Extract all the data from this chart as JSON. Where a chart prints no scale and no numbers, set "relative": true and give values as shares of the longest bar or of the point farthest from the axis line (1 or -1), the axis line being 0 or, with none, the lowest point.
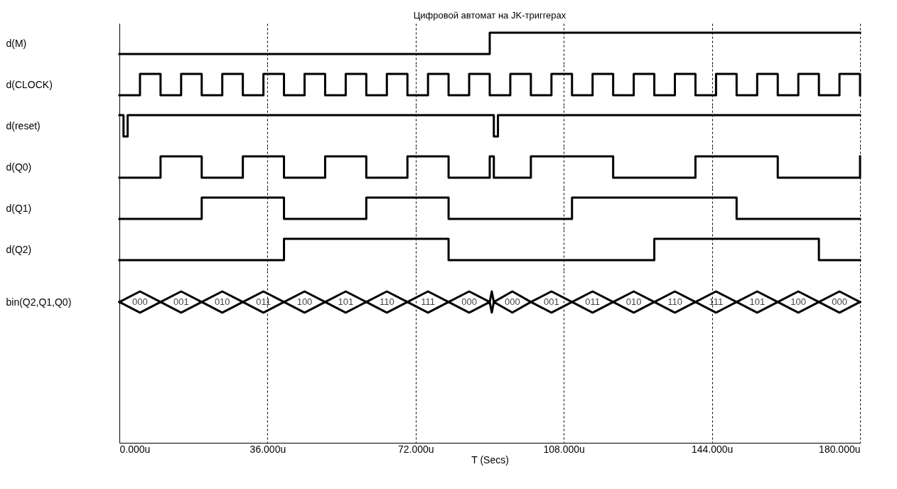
{
  "chart_data": [
    {
      "type": "step",
      "title": "Цифровой автомат на JK-триггерах",
      "ylabel": "d(M)",
      "relative": true,
      "xlim": [
        0,
        180
      ],
      "xticks": [
        0,
        36,
        72,
        108,
        144,
        180
      ],
      "grid": "x",
      "tick_labels": false,
      "x": [
        0,
        90,
        180
      ],
      "series": [
        {
          "color": "#000000",
          "values": [
            0,
            1,
            1
          ]
        }
      ]
    },
    {
      "type": "step",
      "ylabel": "d(CLOCK)",
      "relative": true,
      "xlim": [
        0,
        180
      ],
      "xticks": [
        0,
        36,
        72,
        108,
        144,
        180
      ],
      "grid": "x",
      "tick_labels": false,
      "x": [
        0,
        5,
        10,
        15,
        20,
        25,
        30,
        35,
        40,
        45,
        50,
        55,
        60,
        65,
        70,
        75,
        80,
        85,
        90,
        95,
        100,
        105,
        110,
        115,
        120,
        125,
        130,
        135,
        140,
        145,
        150,
        155,
        160,
        165,
        170,
        175,
        180
      ],
      "series": [
        {
          "color": "#000000",
          "values": [
            0,
            1,
            0,
            1,
            0,
            1,
            0,
            1,
            0,
            1,
            0,
            1,
            0,
            1,
            0,
            1,
            0,
            1,
            0,
            1,
            0,
            1,
            0,
            1,
            0,
            1,
            0,
            1,
            0,
            1,
            0,
            1,
            0,
            1,
            0,
            1,
            0
          ]
        }
      ]
    },
    {
      "type": "step",
      "ylabel": "d(reset)",
      "relative": true,
      "xlim": [
        0,
        180
      ],
      "xticks": [
        0,
        36,
        72,
        108,
        144,
        180
      ],
      "grid": "x",
      "tick_labels": false,
      "x": [
        0,
        1,
        2,
        91,
        92,
        180
      ],
      "series": [
        {
          "color": "#000000",
          "values": [
            1,
            0,
            1,
            0,
            1,
            1
          ]
        }
      ]
    },
    {
      "type": "step",
      "ylabel": "d(Q0)",
      "relative": true,
      "xlim": [
        0,
        180
      ],
      "xticks": [
        0,
        36,
        72,
        108,
        144,
        180
      ],
      "grid": "x",
      "tick_labels": false,
      "x": [
        0,
        10,
        20,
        30,
        40,
        50,
        60,
        70,
        80,
        90,
        91,
        100,
        120,
        140,
        160,
        180
      ],
      "series": [
        {
          "color": "#000000",
          "values": [
            0,
            1,
            0,
            1,
            0,
            1,
            0,
            1,
            0,
            1,
            0,
            1,
            0,
            1,
            0,
            1
          ]
        }
      ]
    },
    {
      "type": "step",
      "ylabel": "d(Q1)",
      "relative": true,
      "xlim": [
        0,
        180
      ],
      "xticks": [
        0,
        36,
        72,
        108,
        144,
        180
      ],
      "grid": "x",
      "tick_labels": false,
      "x": [
        0,
        20,
        40,
        60,
        80,
        110,
        150,
        180
      ],
      "series": [
        {
          "color": "#000000",
          "values": [
            0,
            1,
            0,
            1,
            0,
            1,
            0,
            0
          ]
        }
      ]
    },
    {
      "type": "step",
      "ylabel": "d(Q2)",
      "relative": true,
      "xlim": [
        0,
        180
      ],
      "xticks": [
        0,
        36,
        72,
        108,
        144,
        180
      ],
      "grid": "x",
      "tick_labels": false,
      "x": [
        0,
        40,
        80,
        130,
        170,
        180
      ],
      "series": [
        {
          "color": "#000000",
          "values": [
            0,
            1,
            0,
            1,
            0,
            0
          ]
        }
      ]
    },
    {
      "type": "line",
      "ylabel": "bin(Q2,Q1,Q0)",
      "xlabel": "T (Secs)",
      "relative": true,
      "xlim": [
        0,
        180
      ],
      "xticks": [
        {
          "value": 0,
          "label": "0.000u"
        },
        {
          "value": 36,
          "label": "36.000u"
        },
        {
          "value": 72,
          "label": "72.000u"
        },
        {
          "value": 108,
          "label": "108.000u"
        },
        {
          "value": 144,
          "label": "144.000u"
        },
        {
          "value": 180,
          "label": "180.000u"
        }
      ],
      "grid": "x",
      "tick_labels": "x",
      "x": [
        0,
        5,
        10,
        15,
        20,
        25,
        30,
        35,
        40,
        45,
        50,
        55,
        60,
        65,
        70,
        75,
        80,
        85,
        90,
        90.5,
        91,
        95.5,
        100,
        105,
        110,
        115,
        120,
        125,
        130,
        135,
        140,
        145,
        150,
        155,
        160,
        165,
        170,
        175,
        180
      ],
      "annotations": [
        "000",
        "001",
        "010",
        "011",
        "100",
        "101",
        "110",
        "111",
        "000",
        "000",
        "001",
        "011",
        "010",
        "110",
        "111",
        "101",
        "100",
        "000"
      ],
      "series": [
        {
          "color": "#000000",
          "values": [
            0.93,
            1,
            0.93,
            1,
            0.93,
            1,
            0.93,
            1,
            0.93,
            1,
            0.93,
            1,
            0.93,
            1,
            0.93,
            1,
            0.93,
            1,
            0.93,
            1,
            0.93,
            1,
            0.93,
            1,
            0.93,
            1,
            0.93,
            1,
            0.93,
            1,
            0.93,
            1,
            0.93,
            1,
            0.93,
            1,
            0.93,
            1,
            0.93
          ]
        },
        {
          "color": "#000000",
          "values": [
            0.93,
            0.86,
            0.93,
            0.86,
            0.93,
            0.86,
            0.93,
            0.86,
            0.93,
            0.86,
            0.93,
            0.86,
            0.93,
            0.86,
            0.93,
            0.86,
            0.93,
            0.86,
            0.93,
            0.86,
            0.93,
            0.86,
            0.93,
            0.86,
            0.93,
            0.86,
            0.93,
            0.86,
            0.93,
            0.86,
            0.93,
            0.86,
            0.93,
            0.86,
            0.93,
            0.86,
            0.93,
            0.86,
            0.93
          ]
        }
      ]
    }
  ]
}
